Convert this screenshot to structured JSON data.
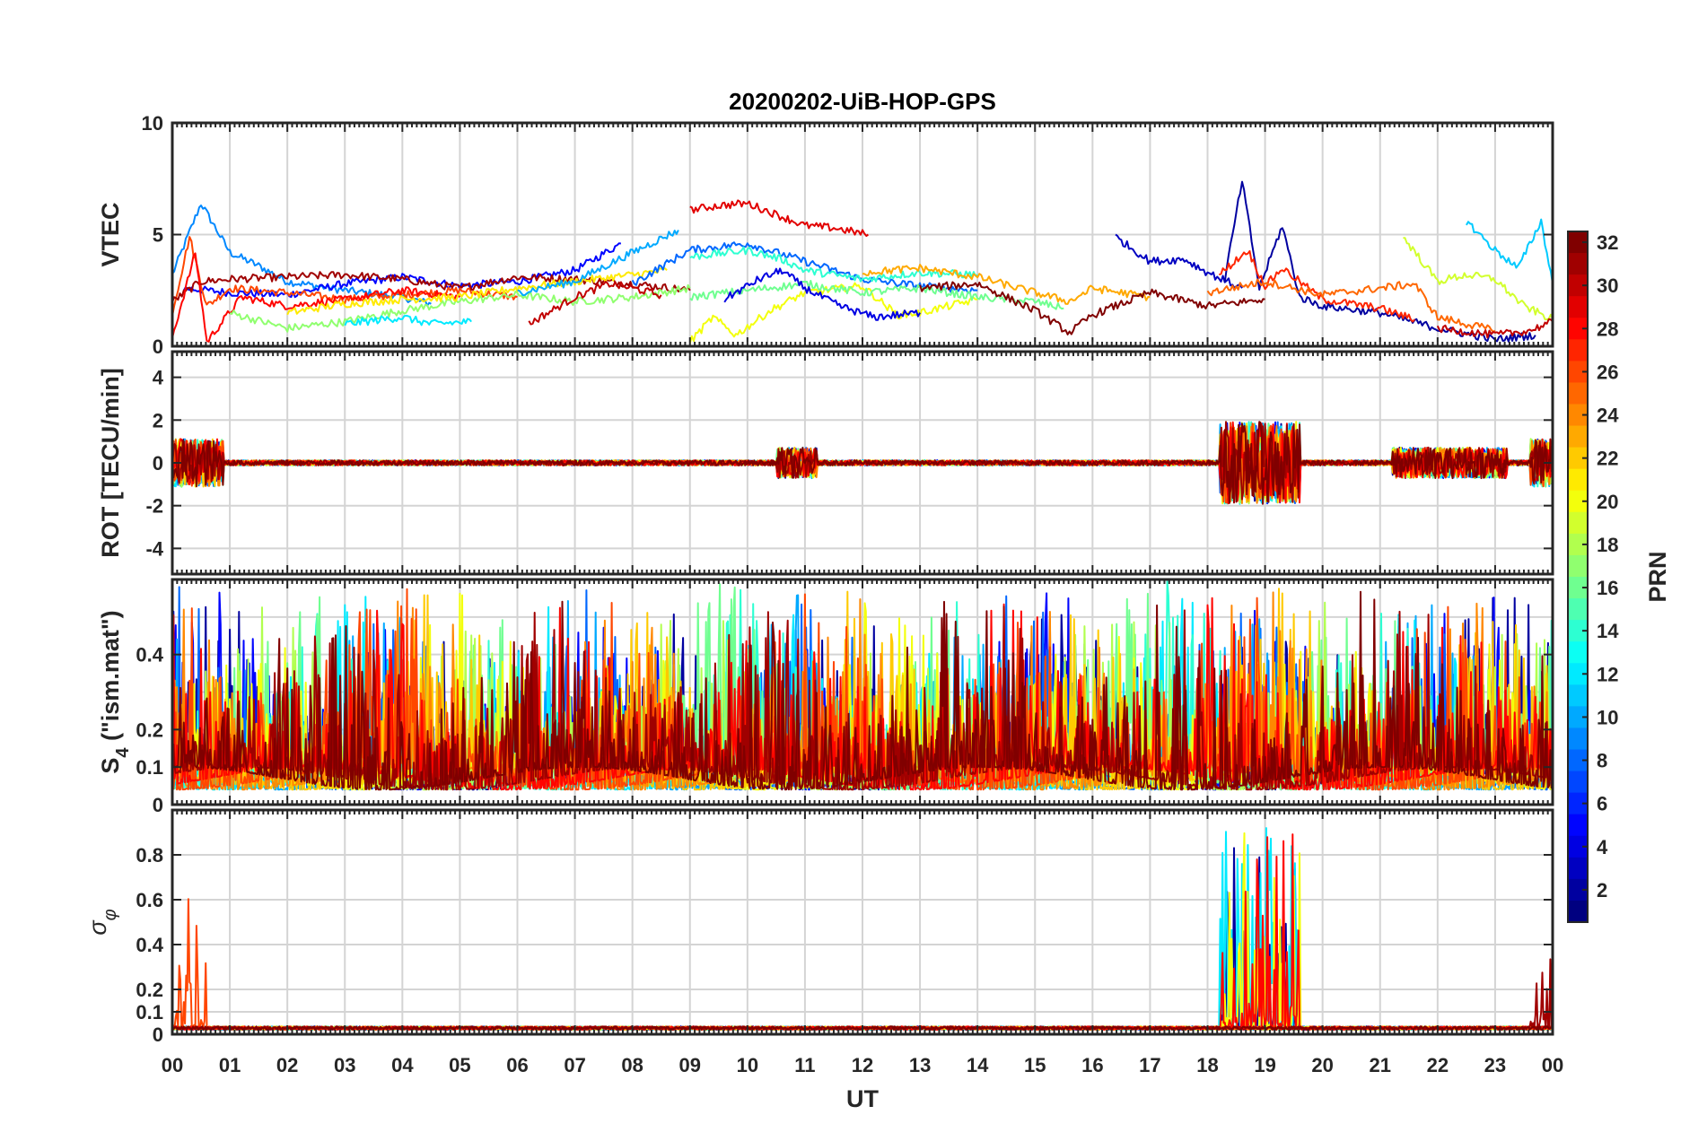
{
  "chart_data": {
    "type": "line",
    "title": "20200202-UiB-HOP-GPS",
    "xlabel": "UT",
    "x_ticks": [
      "00",
      "01",
      "02",
      "03",
      "04",
      "05",
      "06",
      "07",
      "08",
      "09",
      "10",
      "11",
      "12",
      "13",
      "14",
      "15",
      "16",
      "17",
      "18",
      "19",
      "20",
      "21",
      "22",
      "23",
      "00"
    ],
    "xlim": [
      0,
      24
    ],
    "colorbar": {
      "label": "PRN",
      "range": [
        1,
        32
      ],
      "ticks": [
        "2",
        "4",
        "6",
        "8",
        "10",
        "12",
        "14",
        "16",
        "18",
        "20",
        "22",
        "24",
        "26",
        "28",
        "30",
        "32"
      ],
      "colormap": "jet"
    },
    "panels": [
      {
        "id": "vtec",
        "ylabel": "VTEC",
        "ylim": [
          0,
          10
        ],
        "y_ticks": [
          "0",
          "5",
          "10"
        ],
        "series": [
          {
            "prn": 9,
            "points": [
              [
                0,
                3.2
              ],
              [
                0.5,
                6.4
              ],
              [
                1,
                4.2
              ],
              [
                1.5,
                3.6
              ],
              [
                2,
                2.9
              ],
              [
                3,
                2.5
              ],
              [
                4,
                2.2
              ],
              [
                4.5,
                1.9
              ]
            ]
          },
          {
            "prn": 5,
            "points": [
              [
                0.2,
                2.6
              ],
              [
                1,
                2.4
              ],
              [
                2,
                2.3
              ],
              [
                3,
                2.8
              ],
              [
                4,
                3.1
              ],
              [
                5,
                2.7
              ],
              [
                6,
                2.9
              ],
              [
                7,
                3.4
              ],
              [
                7.8,
                4.6
              ]
            ]
          },
          {
            "prn": 26,
            "points": [
              [
                0,
                1.5
              ],
              [
                0.3,
                4.9
              ],
              [
                0.6,
                1.8
              ],
              [
                1,
                2.6
              ],
              [
                2,
                2.4
              ],
              [
                3,
                2.1
              ],
              [
                4,
                2.3
              ],
              [
                5,
                2.5
              ],
              [
                6,
                2.2
              ]
            ]
          },
          {
            "prn": 31,
            "points": [
              [
                0,
                2.0
              ],
              [
                0.5,
                2.9
              ],
              [
                1,
                3.0
              ],
              [
                2,
                3.1
              ],
              [
                3,
                3.2
              ],
              [
                4,
                3.0
              ],
              [
                5,
                2.6
              ],
              [
                6,
                3.1
              ],
              [
                7,
                3.0
              ],
              [
                8,
                2.8
              ],
              [
                9,
                2.5
              ]
            ]
          },
          {
            "prn": 28,
            "points": [
              [
                0,
                0.4
              ],
              [
                0.4,
                4.2
              ],
              [
                0.6,
                0.2
              ],
              [
                1.2,
                2.2
              ],
              [
                2,
                1.8
              ],
              [
                3,
                2.1
              ],
              [
                4,
                2.5
              ],
              [
                5,
                2.2
              ]
            ]
          },
          {
            "prn": 17,
            "points": [
              [
                1,
                1.5
              ],
              [
                2,
                0.8
              ],
              [
                3,
                1.1
              ],
              [
                4,
                1.6
              ],
              [
                5,
                2.0
              ],
              [
                6,
                2.3
              ],
              [
                7,
                2.0
              ],
              [
                8,
                2.2
              ],
              [
                9,
                2.6
              ]
            ]
          },
          {
            "prn": 21,
            "points": [
              [
                2,
                1.5
              ],
              [
                3,
                1.9
              ],
              [
                4,
                2.1
              ],
              [
                5,
                2.2
              ],
              [
                6,
                2.6
              ],
              [
                7,
                2.9
              ],
              [
                8,
                3.2
              ],
              [
                8.6,
                3.4
              ]
            ]
          },
          {
            "prn": 12,
            "points": [
              [
                3,
                1.0
              ],
              [
                4,
                1.3
              ],
              [
                4.5,
                1.0
              ],
              [
                5.2,
                1.1
              ]
            ]
          },
          {
            "prn": 10,
            "points": [
              [
                6,
                2.4
              ],
              [
                7,
                2.9
              ],
              [
                8,
                4.2
              ],
              [
                8.8,
                5.2
              ]
            ]
          },
          {
            "prn": 30,
            "points": [
              [
                6.2,
                1.0
              ],
              [
                7,
                2.2
              ],
              [
                7.6,
                2.8
              ],
              [
                8,
                2.6
              ],
              [
                8.5,
                2.3
              ]
            ]
          },
          {
            "prn": 29,
            "points": [
              [
                9,
                6.1
              ],
              [
                9.5,
                6.3
              ],
              [
                10,
                6.4
              ],
              [
                10.5,
                5.9
              ],
              [
                11,
                5.4
              ],
              [
                11.5,
                5.3
              ],
              [
                12.1,
                5.0
              ]
            ]
          },
          {
            "prn": 8,
            "points": [
              [
                8,
                2.8
              ],
              [
                9,
                4.3
              ],
              [
                10,
                4.6
              ],
              [
                11,
                3.8
              ],
              [
                12,
                3.0
              ],
              [
                13,
                2.7
              ],
              [
                14,
                2.5
              ]
            ]
          },
          {
            "prn": 14,
            "points": [
              [
                9,
                4.0
              ],
              [
                10,
                4.3
              ],
              [
                10.6,
                3.9
              ],
              [
                11,
                3.4
              ],
              [
                12,
                3.0
              ],
              [
                13,
                3.3
              ],
              [
                14,
                3.2
              ]
            ]
          },
          {
            "prn": 20,
            "points": [
              [
                9,
                0.2
              ],
              [
                9.4,
                1.3
              ],
              [
                9.8,
                0.5
              ],
              [
                10.4,
                1.6
              ],
              [
                11,
                2.4
              ],
              [
                12,
                2.7
              ],
              [
                12.6,
                1.4
              ],
              [
                13,
                1.5
              ],
              [
                14,
                2.1
              ]
            ]
          },
          {
            "prn": 16,
            "points": [
              [
                9,
                2.2
              ],
              [
                10,
                2.5
              ],
              [
                11,
                2.8
              ],
              [
                12,
                2.4
              ],
              [
                13,
                2.6
              ],
              [
                14,
                2.2
              ],
              [
                15,
                2.0
              ],
              [
                15.5,
                1.7
              ]
            ]
          },
          {
            "prn": 4,
            "points": [
              [
                9.6,
                2.1
              ],
              [
                10.2,
                3.0
              ],
              [
                10.6,
                3.4
              ],
              [
                11,
                2.6
              ],
              [
                11.6,
                1.8
              ],
              [
                12.2,
                1.3
              ],
              [
                13,
                1.5
              ]
            ]
          },
          {
            "prn": 23,
            "points": [
              [
                12,
                3.3
              ],
              [
                13,
                3.5
              ],
              [
                14,
                3.1
              ],
              [
                15,
                2.4
              ],
              [
                15.6,
                2.0
              ],
              [
                16,
                2.6
              ],
              [
                17,
                2.2
              ]
            ]
          },
          {
            "prn": 32,
            "points": [
              [
                13,
                2.6
              ],
              [
                14,
                2.8
              ],
              [
                15,
                1.6
              ],
              [
                15.6,
                0.6
              ],
              [
                16,
                1.4
              ],
              [
                17,
                2.4
              ],
              [
                18,
                1.8
              ],
              [
                19,
                2.1
              ]
            ]
          },
          {
            "prn": 3,
            "points": [
              [
                16.4,
                4.9
              ],
              [
                17,
                3.8
              ],
              [
                17.6,
                3.9
              ],
              [
                18,
                3.3
              ],
              [
                18.6,
                2.6
              ]
            ]
          },
          {
            "prn": 2,
            "points": [
              [
                18.3,
                3.0
              ],
              [
                18.6,
                7.4
              ],
              [
                18.9,
                2.6
              ],
              [
                19.3,
                5.4
              ],
              [
                19.6,
                2.2
              ],
              [
                20,
                1.8
              ],
              [
                21,
                1.5
              ],
              [
                22,
                0.8
              ],
              [
                23,
                0.3
              ],
              [
                23.7,
                0.5
              ]
            ]
          },
          {
            "prn": 27,
            "points": [
              [
                18.2,
                3.2
              ],
              [
                18.7,
                4.3
              ],
              [
                19,
                2.7
              ],
              [
                19.3,
                3.5
              ],
              [
                20,
                2.1
              ],
              [
                21,
                1.7
              ],
              [
                21.6,
                1.2
              ]
            ]
          },
          {
            "prn": 25,
            "points": [
              [
                18,
                2.4
              ],
              [
                19,
                2.9
              ],
              [
                20,
                2.3
              ],
              [
                21,
                2.6
              ],
              [
                21.6,
                2.8
              ],
              [
                22,
                1.3
              ],
              [
                23,
                0.7
              ]
            ]
          },
          {
            "prn": 11,
            "points": [
              [
                22.5,
                5.6
              ],
              [
                23,
                4.3
              ],
              [
                23.4,
                3.5
              ],
              [
                23.8,
                5.6
              ],
              [
                24,
                2.8
              ]
            ]
          },
          {
            "prn": 19,
            "points": [
              [
                21.4,
                4.9
              ],
              [
                22,
                2.9
              ],
              [
                22.5,
                3.2
              ],
              [
                23,
                3.0
              ],
              [
                23.5,
                1.8
              ],
              [
                24,
                1.2
              ]
            ]
          },
          {
            "prn": 30,
            "points": [
              [
                22,
                0.8
              ],
              [
                23,
                0.5
              ],
              [
                23.6,
                0.7
              ],
              [
                24,
                1.1
              ]
            ]
          }
        ]
      },
      {
        "id": "rot",
        "ylabel": "ROT [TECU/min]",
        "ylim": [
          -5.2,
          5.2
        ],
        "y_ticks": [
          "-4",
          "-2",
          "0",
          "2",
          "4"
        ]
      },
      {
        "id": "s4",
        "ylabel": "S4 (\"ism.mat\")",
        "ylabel_main": "S",
        "ylabel_sub": "4",
        "ylabel_rest": " (\"ism.mat\")",
        "ylim": [
          0,
          0.6
        ],
        "y_ticks": [
          "0",
          "0.1",
          "0.2",
          "0.4"
        ]
      },
      {
        "id": "sigma",
        "ylabel": "σφ",
        "ylabel_main": "σ",
        "ylabel_sub": "φ",
        "ylim": [
          0,
          1
        ],
        "y_ticks": [
          "0",
          "0.1",
          "0.2",
          "0.4",
          "0.6",
          "0.8"
        ]
      }
    ]
  }
}
